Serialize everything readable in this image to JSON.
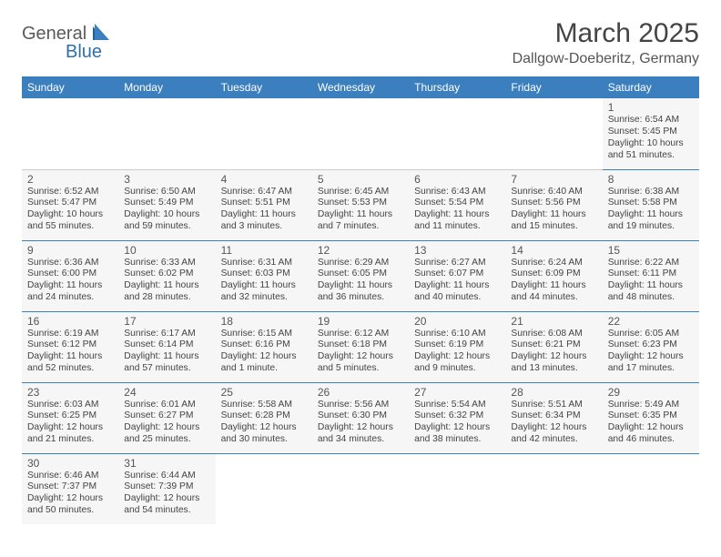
{
  "logo": {
    "part1": "General",
    "part2": "Blue"
  },
  "title": "March 2025",
  "location": "Dallgow-Doeberitz, Germany",
  "colors": {
    "header_bg": "#3b7fbf",
    "header_text": "#ffffff",
    "cell_bg": "#f6f6f6",
    "border": "#3b7fbf",
    "text": "#444444",
    "logo_gray": "#5a5a5a",
    "logo_blue": "#2f6fab"
  },
  "weekdays": [
    "Sunday",
    "Monday",
    "Tuesday",
    "Wednesday",
    "Thursday",
    "Friday",
    "Saturday"
  ],
  "weeks": [
    [
      null,
      null,
      null,
      null,
      null,
      null,
      {
        "d": "1",
        "sr": "Sunrise: 6:54 AM",
        "ss": "Sunset: 5:45 PM",
        "dl": "Daylight: 10 hours and 51 minutes."
      }
    ],
    [
      {
        "d": "2",
        "sr": "Sunrise: 6:52 AM",
        "ss": "Sunset: 5:47 PM",
        "dl": "Daylight: 10 hours and 55 minutes."
      },
      {
        "d": "3",
        "sr": "Sunrise: 6:50 AM",
        "ss": "Sunset: 5:49 PM",
        "dl": "Daylight: 10 hours and 59 minutes."
      },
      {
        "d": "4",
        "sr": "Sunrise: 6:47 AM",
        "ss": "Sunset: 5:51 PM",
        "dl": "Daylight: 11 hours and 3 minutes."
      },
      {
        "d": "5",
        "sr": "Sunrise: 6:45 AM",
        "ss": "Sunset: 5:53 PM",
        "dl": "Daylight: 11 hours and 7 minutes."
      },
      {
        "d": "6",
        "sr": "Sunrise: 6:43 AM",
        "ss": "Sunset: 5:54 PM",
        "dl": "Daylight: 11 hours and 11 minutes."
      },
      {
        "d": "7",
        "sr": "Sunrise: 6:40 AM",
        "ss": "Sunset: 5:56 PM",
        "dl": "Daylight: 11 hours and 15 minutes."
      },
      {
        "d": "8",
        "sr": "Sunrise: 6:38 AM",
        "ss": "Sunset: 5:58 PM",
        "dl": "Daylight: 11 hours and 19 minutes."
      }
    ],
    [
      {
        "d": "9",
        "sr": "Sunrise: 6:36 AM",
        "ss": "Sunset: 6:00 PM",
        "dl": "Daylight: 11 hours and 24 minutes."
      },
      {
        "d": "10",
        "sr": "Sunrise: 6:33 AM",
        "ss": "Sunset: 6:02 PM",
        "dl": "Daylight: 11 hours and 28 minutes."
      },
      {
        "d": "11",
        "sr": "Sunrise: 6:31 AM",
        "ss": "Sunset: 6:03 PM",
        "dl": "Daylight: 11 hours and 32 minutes."
      },
      {
        "d": "12",
        "sr": "Sunrise: 6:29 AM",
        "ss": "Sunset: 6:05 PM",
        "dl": "Daylight: 11 hours and 36 minutes."
      },
      {
        "d": "13",
        "sr": "Sunrise: 6:27 AM",
        "ss": "Sunset: 6:07 PM",
        "dl": "Daylight: 11 hours and 40 minutes."
      },
      {
        "d": "14",
        "sr": "Sunrise: 6:24 AM",
        "ss": "Sunset: 6:09 PM",
        "dl": "Daylight: 11 hours and 44 minutes."
      },
      {
        "d": "15",
        "sr": "Sunrise: 6:22 AM",
        "ss": "Sunset: 6:11 PM",
        "dl": "Daylight: 11 hours and 48 minutes."
      }
    ],
    [
      {
        "d": "16",
        "sr": "Sunrise: 6:19 AM",
        "ss": "Sunset: 6:12 PM",
        "dl": "Daylight: 11 hours and 52 minutes."
      },
      {
        "d": "17",
        "sr": "Sunrise: 6:17 AM",
        "ss": "Sunset: 6:14 PM",
        "dl": "Daylight: 11 hours and 57 minutes."
      },
      {
        "d": "18",
        "sr": "Sunrise: 6:15 AM",
        "ss": "Sunset: 6:16 PM",
        "dl": "Daylight: 12 hours and 1 minute."
      },
      {
        "d": "19",
        "sr": "Sunrise: 6:12 AM",
        "ss": "Sunset: 6:18 PM",
        "dl": "Daylight: 12 hours and 5 minutes."
      },
      {
        "d": "20",
        "sr": "Sunrise: 6:10 AM",
        "ss": "Sunset: 6:19 PM",
        "dl": "Daylight: 12 hours and 9 minutes."
      },
      {
        "d": "21",
        "sr": "Sunrise: 6:08 AM",
        "ss": "Sunset: 6:21 PM",
        "dl": "Daylight: 12 hours and 13 minutes."
      },
      {
        "d": "22",
        "sr": "Sunrise: 6:05 AM",
        "ss": "Sunset: 6:23 PM",
        "dl": "Daylight: 12 hours and 17 minutes."
      }
    ],
    [
      {
        "d": "23",
        "sr": "Sunrise: 6:03 AM",
        "ss": "Sunset: 6:25 PM",
        "dl": "Daylight: 12 hours and 21 minutes."
      },
      {
        "d": "24",
        "sr": "Sunrise: 6:01 AM",
        "ss": "Sunset: 6:27 PM",
        "dl": "Daylight: 12 hours and 25 minutes."
      },
      {
        "d": "25",
        "sr": "Sunrise: 5:58 AM",
        "ss": "Sunset: 6:28 PM",
        "dl": "Daylight: 12 hours and 30 minutes."
      },
      {
        "d": "26",
        "sr": "Sunrise: 5:56 AM",
        "ss": "Sunset: 6:30 PM",
        "dl": "Daylight: 12 hours and 34 minutes."
      },
      {
        "d": "27",
        "sr": "Sunrise: 5:54 AM",
        "ss": "Sunset: 6:32 PM",
        "dl": "Daylight: 12 hours and 38 minutes."
      },
      {
        "d": "28",
        "sr": "Sunrise: 5:51 AM",
        "ss": "Sunset: 6:34 PM",
        "dl": "Daylight: 12 hours and 42 minutes."
      },
      {
        "d": "29",
        "sr": "Sunrise: 5:49 AM",
        "ss": "Sunset: 6:35 PM",
        "dl": "Daylight: 12 hours and 46 minutes."
      }
    ],
    [
      {
        "d": "30",
        "sr": "Sunrise: 6:46 AM",
        "ss": "Sunset: 7:37 PM",
        "dl": "Daylight: 12 hours and 50 minutes."
      },
      {
        "d": "31",
        "sr": "Sunrise: 6:44 AM",
        "ss": "Sunset: 7:39 PM",
        "dl": "Daylight: 12 hours and 54 minutes."
      },
      null,
      null,
      null,
      null,
      null
    ]
  ]
}
